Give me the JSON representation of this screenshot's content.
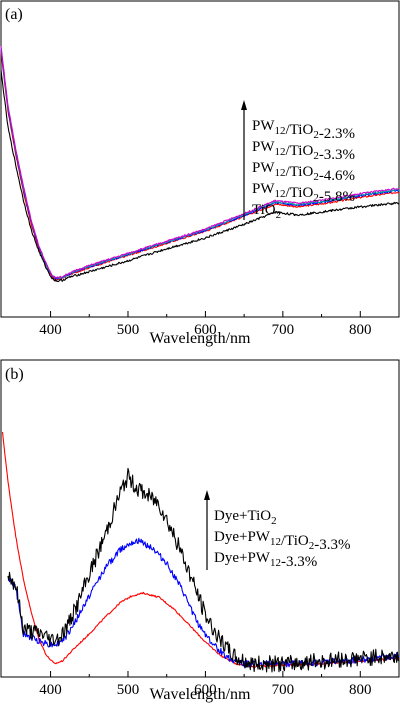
{
  "chart_data": [
    {
      "panel_label": "(a)",
      "type": "line",
      "xlabel": "Wavelength/nm",
      "ylabel": "",
      "xlim": [
        336,
        850
      ],
      "ylim": [
        0,
        1
      ],
      "x_ticks": [
        400,
        500,
        600,
        700,
        800
      ],
      "y_ticks_shown": false,
      "legend": {
        "placement": "right-middle, listed beside an upward arrow",
        "entries": [
          {
            "base": "PW",
            "sub": "12",
            "rest": "/TiO",
            "sub2": "2",
            "tail": "-2.3%"
          },
          {
            "base": "PW",
            "sub": "12",
            "rest": "/TiO",
            "sub2": "2",
            "tail": "-3.3%"
          },
          {
            "base": "PW",
            "sub": "12",
            "rest": "/TiO",
            "sub2": "2",
            "tail": "-4.6%"
          },
          {
            "base": "PW",
            "sub": "12",
            "rest": "/TiO",
            "sub2": "2",
            "tail": "-5.8%"
          },
          {
            "base": "TiO",
            "sub": "2",
            "rest": "",
            "sub2": "",
            "tail": ""
          }
        ]
      },
      "series": [
        {
          "color": "#ff0000",
          "noise": 0.003,
          "x": [
            336,
            345,
            355,
            365,
            375,
            385,
            395,
            402,
            408,
            415,
            425,
            450,
            500,
            550,
            600,
            650,
            690,
            720,
            760,
            800,
            850
          ],
          "y": [
            0.92,
            0.7,
            0.54,
            0.4,
            0.28,
            0.19,
            0.12,
            0.085,
            0.075,
            0.08,
            0.095,
            0.12,
            0.165,
            0.21,
            0.255,
            0.31,
            0.355,
            0.345,
            0.36,
            0.38,
            0.4
          ]
        },
        {
          "color": "#0000ff",
          "noise": 0.003,
          "x": [
            336,
            345,
            355,
            365,
            375,
            385,
            395,
            402,
            408,
            415,
            425,
            450,
            500,
            550,
            600,
            650,
            690,
            720,
            760,
            800,
            850
          ],
          "y": [
            0.93,
            0.71,
            0.55,
            0.41,
            0.29,
            0.195,
            0.125,
            0.088,
            0.078,
            0.082,
            0.097,
            0.123,
            0.168,
            0.213,
            0.258,
            0.313,
            0.36,
            0.35,
            0.366,
            0.386,
            0.406
          ]
        },
        {
          "color": "#00a0a0",
          "noise": 0.003,
          "x": [
            336,
            345,
            355,
            365,
            375,
            385,
            395,
            402,
            408,
            415,
            425,
            450,
            500,
            550,
            600,
            650,
            690,
            720,
            760,
            800,
            850
          ],
          "y": [
            0.935,
            0.715,
            0.555,
            0.415,
            0.293,
            0.198,
            0.127,
            0.09,
            0.08,
            0.084,
            0.099,
            0.125,
            0.17,
            0.215,
            0.26,
            0.316,
            0.363,
            0.353,
            0.369,
            0.389,
            0.409
          ]
        },
        {
          "color": "#cc00cc",
          "noise": 0.003,
          "x": [
            336,
            345,
            355,
            365,
            375,
            385,
            395,
            402,
            408,
            415,
            425,
            450,
            500,
            550,
            600,
            650,
            690,
            720,
            760,
            800,
            850
          ],
          "y": [
            0.94,
            0.72,
            0.56,
            0.42,
            0.296,
            0.2,
            0.13,
            0.092,
            0.082,
            0.086,
            0.101,
            0.128,
            0.173,
            0.218,
            0.263,
            0.32,
            0.368,
            0.358,
            0.374,
            0.394,
            0.414
          ]
        },
        {
          "color": "#000000",
          "noise": 0.004,
          "x": [
            336,
            345,
            355,
            365,
            375,
            385,
            395,
            402,
            408,
            415,
            425,
            450,
            500,
            550,
            600,
            650,
            690,
            720,
            760,
            800,
            850
          ],
          "y": [
            0.85,
            0.64,
            0.5,
            0.37,
            0.26,
            0.18,
            0.115,
            0.08,
            0.07,
            0.073,
            0.085,
            0.105,
            0.145,
            0.19,
            0.23,
            0.28,
            0.325,
            0.315,
            0.33,
            0.345,
            0.36
          ]
        }
      ]
    },
    {
      "panel_label": "(b)",
      "type": "line",
      "xlabel": "Wavelength/nm",
      "ylabel": "",
      "xlim": [
        336,
        850
      ],
      "ylim": [
        0,
        1
      ],
      "x_ticks": [
        400,
        500,
        600,
        700,
        800
      ],
      "y_ticks_shown": false,
      "legend": {
        "placement": "right-middle, listed beside an upward arrow",
        "entries": [
          {
            "base": "Dye+TiO",
            "sub": "2",
            "rest": "",
            "sub2": "",
            "tail": ""
          },
          {
            "base": "Dye+PW",
            "sub": "12",
            "rest": "/TiO",
            "sub2": "2",
            "tail": "-3.3%"
          },
          {
            "base": "Dye+PW",
            "sub": "12",
            "rest": "-3.3%",
            "sub2": "",
            "tail": ""
          }
        ]
      },
      "series": [
        {
          "color": "#ff0000",
          "noise": 0.003,
          "x": [
            338,
            345,
            355,
            365,
            375,
            385,
            395,
            405,
            415,
            430,
            450,
            470,
            490,
            505,
            520,
            540,
            560,
            580,
            600,
            620,
            640,
            660,
            700,
            750,
            800,
            850
          ],
          "y": [
            0.88,
            0.7,
            0.5,
            0.34,
            0.22,
            0.12,
            0.06,
            0.03,
            0.04,
            0.085,
            0.14,
            0.2,
            0.255,
            0.28,
            0.29,
            0.275,
            0.23,
            0.17,
            0.11,
            0.06,
            0.03,
            0.02,
            0.025,
            0.03,
            0.04,
            0.05
          ]
        },
        {
          "color": "#0000ff",
          "noise": 0.012,
          "x": [
            345,
            355,
            365,
            375,
            390,
            400,
            410,
            420,
            435,
            450,
            470,
            490,
            505,
            515,
            530,
            550,
            570,
            590,
            610,
            630,
            650,
            700,
            750,
            800,
            850
          ],
          "y": [
            0.35,
            0.31,
            0.14,
            0.125,
            0.11,
            0.1,
            0.105,
            0.13,
            0.2,
            0.28,
            0.38,
            0.45,
            0.48,
            0.48,
            0.46,
            0.4,
            0.3,
            0.18,
            0.1,
            0.05,
            0.03,
            0.03,
            0.035,
            0.045,
            0.06
          ]
        },
        {
          "color": "#000000",
          "noise": 0.03,
          "x": [
            345,
            355,
            365,
            375,
            390,
            400,
            410,
            420,
            435,
            450,
            470,
            490,
            500,
            510,
            520,
            540,
            560,
            580,
            600,
            620,
            640,
            660,
            700,
            750,
            800,
            850
          ],
          "y": [
            0.36,
            0.32,
            0.16,
            0.15,
            0.14,
            0.12,
            0.125,
            0.16,
            0.25,
            0.36,
            0.5,
            0.66,
            0.72,
            0.68,
            0.66,
            0.62,
            0.5,
            0.36,
            0.21,
            0.11,
            0.05,
            0.03,
            0.03,
            0.04,
            0.05,
            0.06
          ]
        }
      ]
    }
  ]
}
